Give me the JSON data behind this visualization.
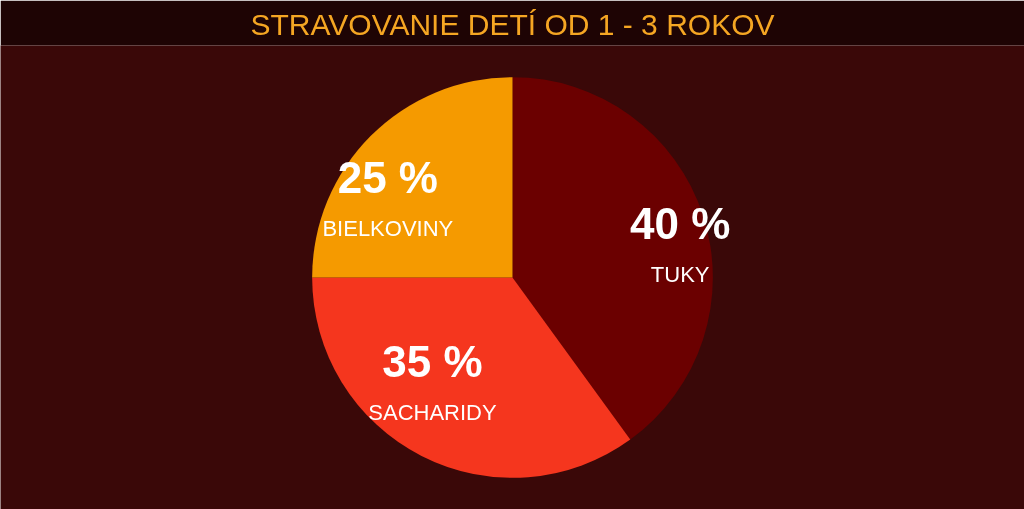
{
  "chart_data": {
    "type": "pie",
    "title": "STRAVOVANIE DETÍ OD 1 - 3 ROKOV",
    "categories": [
      "TUKY",
      "SACHARIDY",
      "BIELKOVINY"
    ],
    "values": [
      40,
      35,
      25
    ],
    "colors": [
      "#6b0000",
      "#f5361e",
      "#f59a00"
    ],
    "value_labels": [
      "40 %",
      "35 %",
      "25 %"
    ],
    "legend": false
  }
}
